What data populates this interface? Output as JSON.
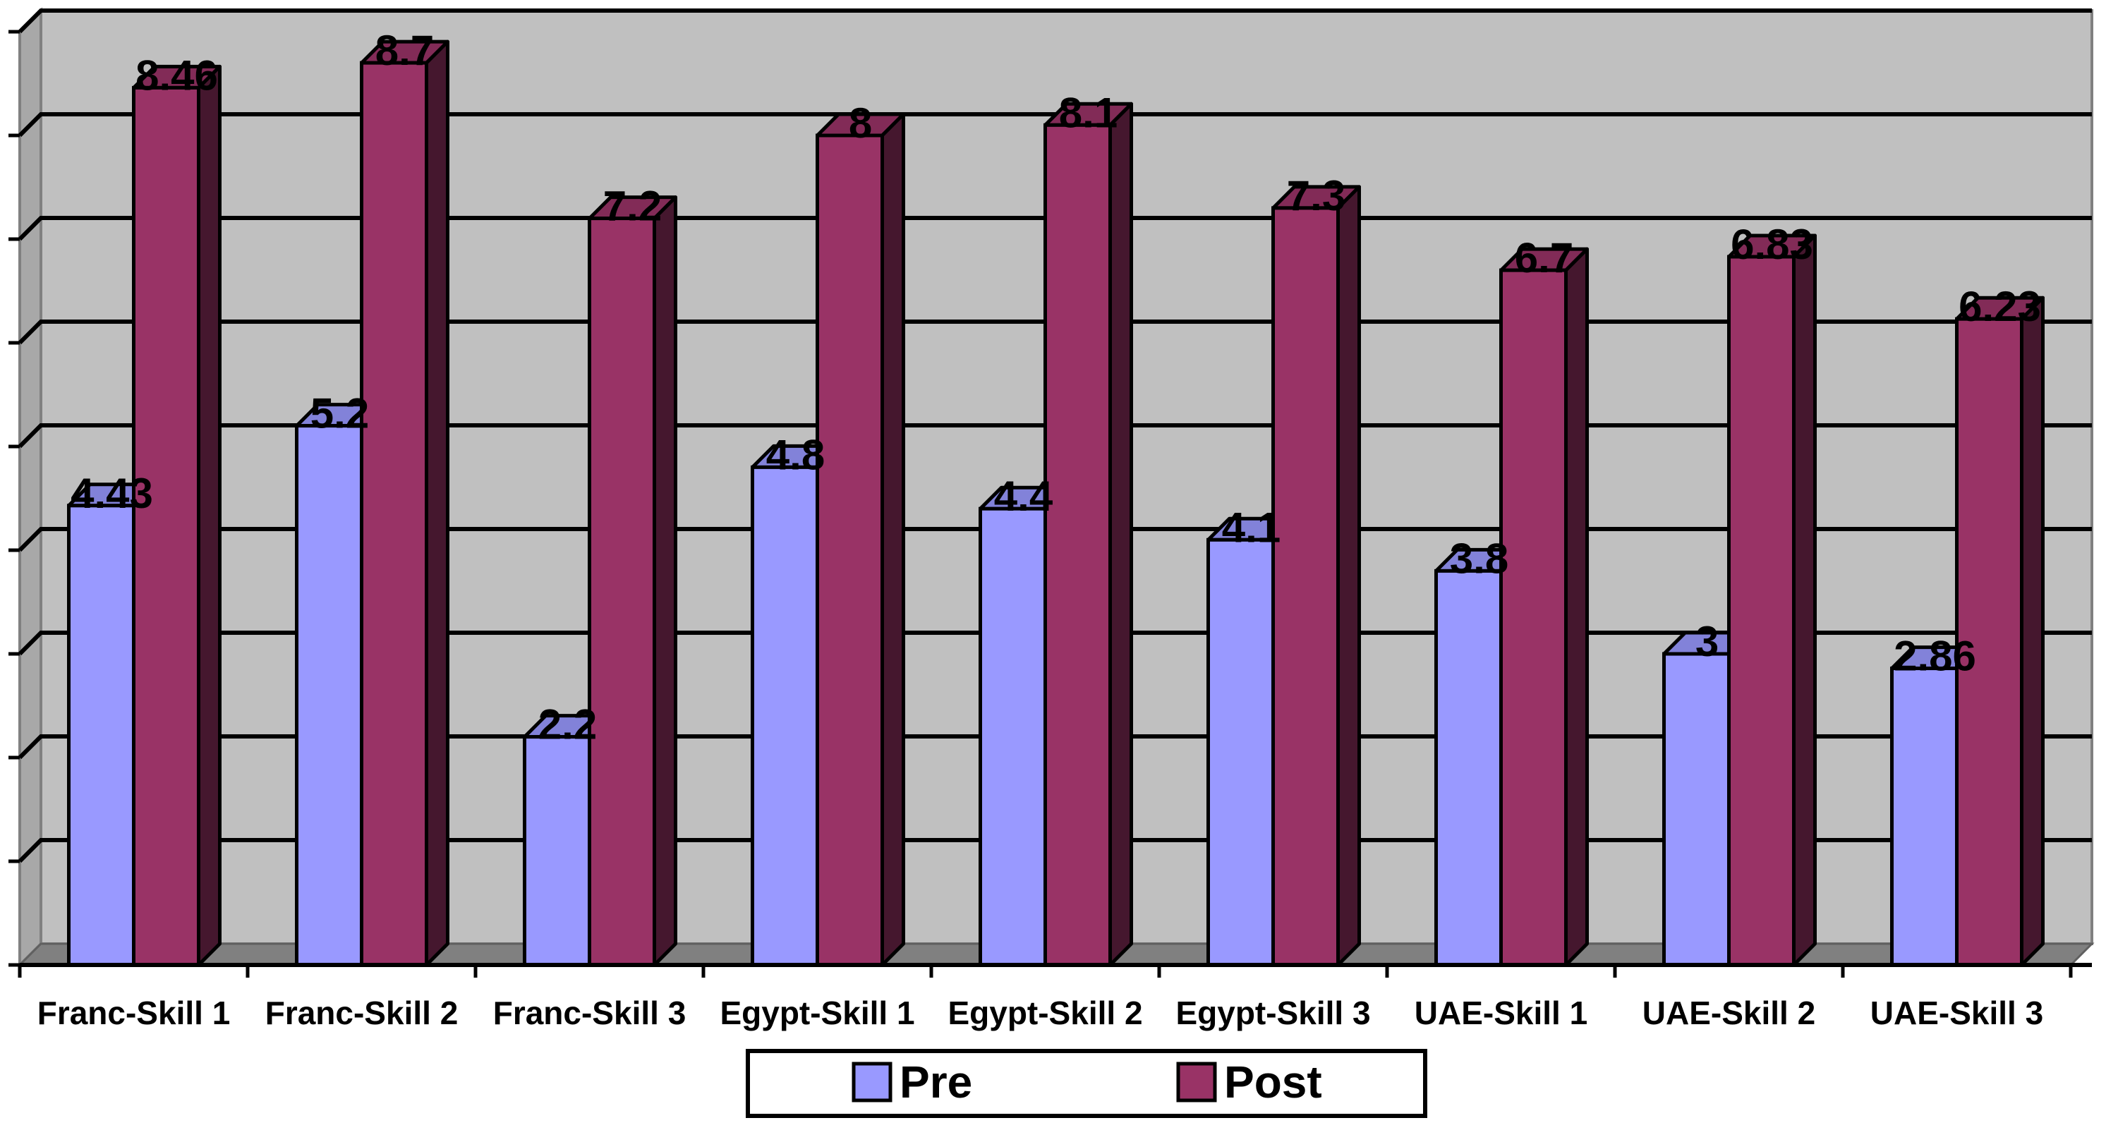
{
  "chart_data": {
    "type": "bar",
    "style": "3d-clustered-column",
    "title": "",
    "xlabel": "",
    "ylabel": "",
    "ylim": [
      0,
      9
    ],
    "y_gridline_step": 1,
    "grid": true,
    "legend_position": "bottom",
    "categories": [
      "Franc-Skill 1",
      "Franc-Skill 2",
      "Franc-Skill 3",
      "Egypt-Skill 1",
      "Egypt-Skill 2",
      "Egypt-Skill 3",
      "UAE-Skill 1",
      "UAE-Skill 2",
      "UAE-Skill 3"
    ],
    "series": [
      {
        "name": "Pre",
        "color": "#9999FF",
        "values": [
          4.43,
          5.2,
          2.2,
          4.8,
          4.4,
          4.1,
          3.8,
          3,
          2.86
        ],
        "labels": [
          "4.43",
          "5.2",
          "2.2",
          "4.8",
          "4.4",
          "4.1",
          "3.8",
          "3",
          "2.86"
        ]
      },
      {
        "name": "Post",
        "color": "#993366",
        "values": [
          8.46,
          8.7,
          7.2,
          8,
          8.1,
          7.3,
          6.7,
          6.83,
          6.23
        ],
        "labels": [
          "8.46",
          "8.7",
          "7.2",
          "8",
          "8.1",
          "7.3",
          "6.7",
          "6.83",
          "6.23"
        ]
      }
    ],
    "colors": {
      "plot_background": "#C0C0C0",
      "wall_side": "#A8A8A8",
      "floor": "#808080",
      "gridline": "#000000"
    }
  }
}
